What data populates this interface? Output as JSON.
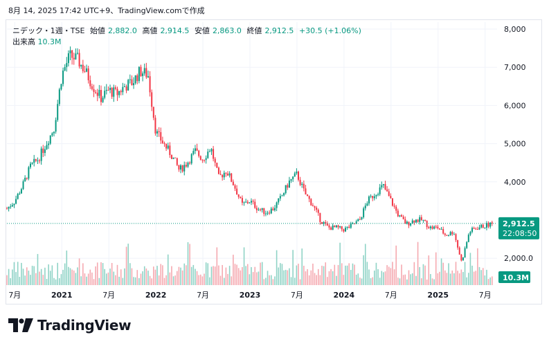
{
  "caption": "8月 14, 2025 17:42 UTC+9、TradingView.comで作成",
  "header": {
    "symbol": "ニデック・1週・TSE",
    "open_label": "始値",
    "open_value": "2,882.0",
    "high_label": "高値",
    "high_value": "2,914.5",
    "low_label": "安値",
    "low_value": "2,863.0",
    "close_label": "終値",
    "close_value": "2,912.5",
    "change": "+30.5 (+1.06%)",
    "volume_label": "出来高",
    "volume_value": "10.3M"
  },
  "price_tag": {
    "price": "2,912.5",
    "countdown": "22:08:50"
  },
  "volume_tag": "10.3M",
  "brand": {
    "name": "TradingView"
  },
  "colors": {
    "up": "#089981",
    "down": "#f23645",
    "up_vol": "#8fd3c6",
    "down_vol": "#f5a9b0"
  },
  "chart_data": {
    "type": "candlestick",
    "interval": "1週",
    "y_ticks": [
      "8,000",
      "7,000",
      "6,000",
      "5,000",
      "4,000",
      "2,000.0"
    ],
    "y_tick_values": [
      8000,
      7000,
      6000,
      5000,
      4000,
      2000
    ],
    "ylim": [
      1600,
      8200
    ],
    "x_ticks": [
      "7月",
      "2021",
      "7月",
      "2022",
      "7月",
      "2023",
      "7月",
      "2024",
      "7月",
      "2025",
      "7月"
    ],
    "x_tick_dates": [
      "2020-07",
      "2021-01",
      "2021-07",
      "2022-01",
      "2022-07",
      "2023-01",
      "2023-07",
      "2024-01",
      "2024-07",
      "2025-01",
      "2025-07"
    ],
    "last_price": 2912.5,
    "price_path": [
      [
        "2020-06",
        3300
      ],
      [
        "2020-07",
        3500
      ],
      [
        "2020-08",
        3900
      ],
      [
        "2020-09",
        4400
      ],
      [
        "2020-10",
        4600
      ],
      [
        "2020-11",
        5000
      ],
      [
        "2020-12",
        5400
      ],
      [
        "2021-01",
        6800
      ],
      [
        "2021-02",
        7300
      ],
      [
        "2021-03",
        7200
      ],
      [
        "2021-04",
        6900
      ],
      [
        "2021-05",
        6500
      ],
      [
        "2021-06",
        6200
      ],
      [
        "2021-07",
        6400
      ],
      [
        "2021-08",
        6300
      ],
      [
        "2021-09",
        6500
      ],
      [
        "2021-10",
        6600
      ],
      [
        "2021-11",
        6900
      ],
      [
        "2021-12",
        6800
      ],
      [
        "2022-01",
        5300
      ],
      [
        "2022-02",
        5000
      ],
      [
        "2022-03",
        4700
      ],
      [
        "2022-04",
        4300
      ],
      [
        "2022-05",
        4500
      ],
      [
        "2022-06",
        4800
      ],
      [
        "2022-07",
        4600
      ],
      [
        "2022-08",
        4900
      ],
      [
        "2022-09",
        4100
      ],
      [
        "2022-10",
        4300
      ],
      [
        "2022-11",
        3900
      ],
      [
        "2022-12",
        3400
      ],
      [
        "2023-01",
        3500
      ],
      [
        "2023-02",
        3300
      ],
      [
        "2023-03",
        3200
      ],
      [
        "2023-04",
        3300
      ],
      [
        "2023-05",
        3600
      ],
      [
        "2023-06",
        4000
      ],
      [
        "2023-07",
        4200
      ],
      [
        "2023-08",
        3700
      ],
      [
        "2023-09",
        3400
      ],
      [
        "2023-10",
        3000
      ],
      [
        "2023-11",
        2800
      ],
      [
        "2023-12",
        2800
      ],
      [
        "2024-01",
        2750
      ],
      [
        "2024-02",
        2850
      ],
      [
        "2024-03",
        3000
      ],
      [
        "2024-04",
        3500
      ],
      [
        "2024-05",
        3700
      ],
      [
        "2024-06",
        3900
      ],
      [
        "2024-07",
        3500
      ],
      [
        "2024-08",
        3100
      ],
      [
        "2024-09",
        2900
      ],
      [
        "2024-10",
        3000
      ],
      [
        "2024-11",
        3000
      ],
      [
        "2024-12",
        2800
      ],
      [
        "2025-01",
        2800
      ],
      [
        "2025-02",
        2600
      ],
      [
        "2025-03",
        2700
      ],
      [
        "2025-04",
        1900
      ],
      [
        "2025-05",
        2700
      ],
      [
        "2025-06",
        2800
      ],
      [
        "2025-07",
        2850
      ],
      [
        "2025-08",
        2912.5
      ]
    ],
    "grid": true,
    "price_line": "dotted"
  }
}
